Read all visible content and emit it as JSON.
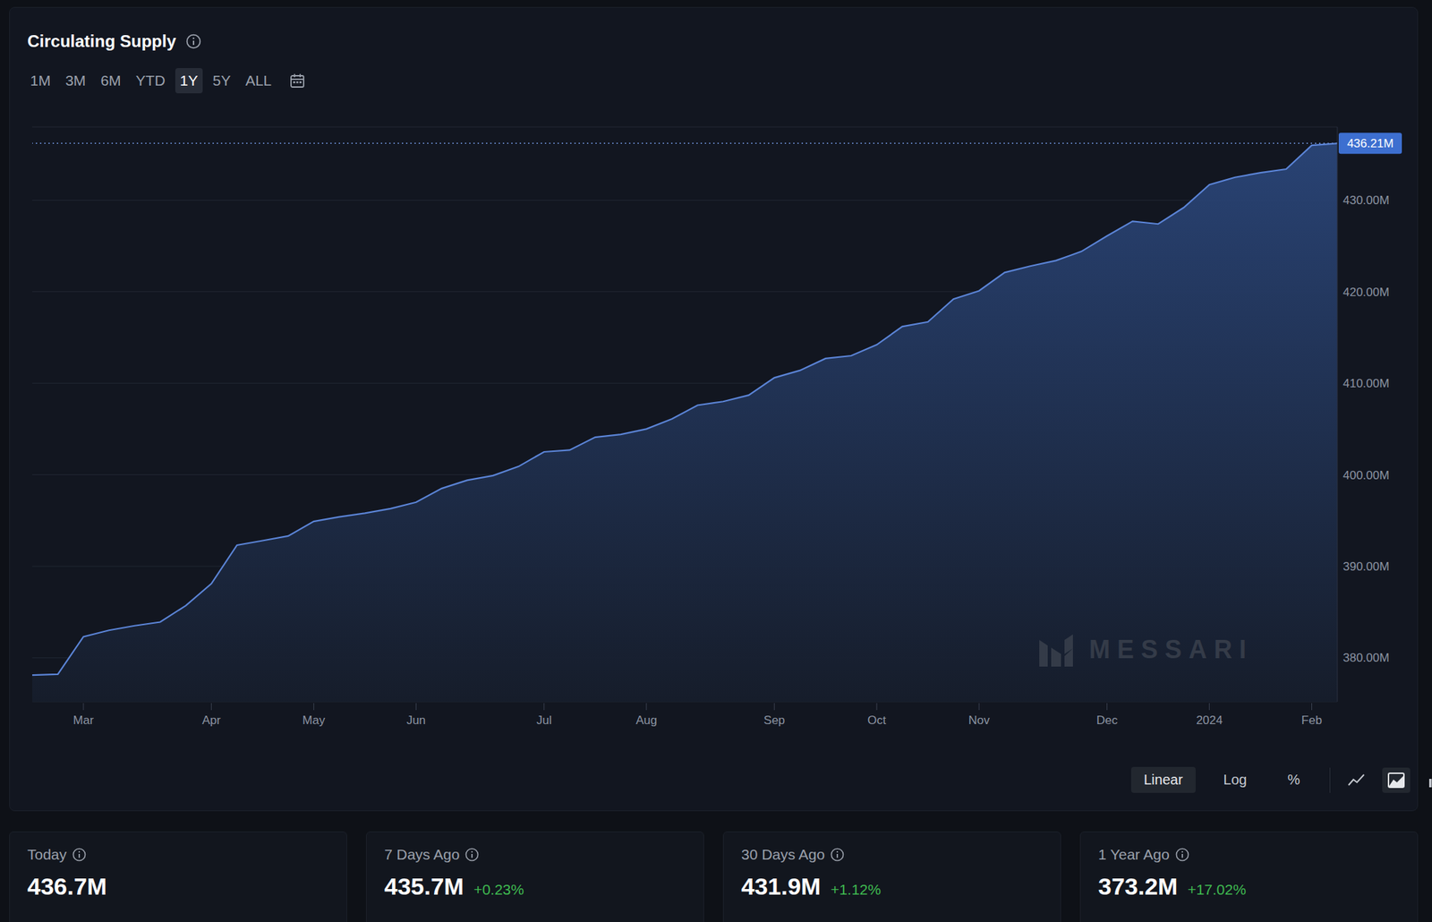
{
  "chart_data": {
    "type": "area",
    "title": "Circulating Supply",
    "categories": [
      null,
      null,
      "Mar",
      null,
      null,
      null,
      null,
      "Apr",
      null,
      null,
      null,
      "May",
      null,
      null,
      null,
      "Jun",
      null,
      null,
      null,
      null,
      "Jul",
      null,
      null,
      null,
      "Aug",
      null,
      null,
      null,
      null,
      "Sep",
      null,
      null,
      null,
      "Oct",
      null,
      null,
      null,
      "Nov",
      null,
      null,
      null,
      null,
      "Dec",
      null,
      null,
      null,
      "2024",
      null,
      null,
      null,
      "Feb",
      null
    ],
    "values": [
      378.1,
      378.2,
      382.3,
      383.0,
      383.5,
      383.9,
      385.7,
      388.1,
      392.3,
      392.8,
      393.3,
      394.9,
      395.4,
      395.8,
      396.3,
      397.0,
      398.5,
      399.4,
      399.9,
      400.9,
      402.5,
      402.7,
      404.1,
      404.4,
      405.0,
      406.1,
      407.6,
      408.0,
      408.7,
      410.6,
      411.4,
      412.7,
      413.0,
      414.2,
      416.2,
      416.7,
      419.2,
      420.1,
      422.1,
      422.8,
      423.4,
      424.4,
      426.1,
      427.7,
      427.4,
      429.2,
      431.7,
      432.5,
      433.0,
      433.4,
      436.0,
      436.21
    ],
    "color": "#5b84d6",
    "ylim": [
      375.2,
      438
    ],
    "yticks": [
      {
        "value": 380,
        "label": "380.00M"
      },
      {
        "value": 390,
        "label": "390.00M"
      },
      {
        "value": 400,
        "label": "400.00M"
      },
      {
        "value": 410,
        "label": "410.00M"
      },
      {
        "value": 420,
        "label": "420.00M"
      },
      {
        "value": 430,
        "label": "430.00M"
      }
    ],
    "grid": true,
    "annotations": [
      {
        "y": 436.21,
        "label": "436.21M"
      }
    ]
  },
  "header": {
    "ranges": [
      "1M",
      "3M",
      "6M",
      "YTD",
      "1Y",
      "5Y",
      "ALL"
    ],
    "selected_range": "1Y"
  },
  "scale_options": [
    "Linear",
    "Log",
    "%"
  ],
  "selected_scale": "Linear",
  "watermark": "MESSARI",
  "stats": [
    {
      "label": "Today",
      "value": "436.7M"
    },
    {
      "label": "7 Days Ago",
      "value": "435.7M",
      "change": "+0.23%"
    },
    {
      "label": "30 Days Ago",
      "value": "431.9M",
      "change": "+1.12%"
    },
    {
      "label": "1 Year Ago",
      "value": "373.2M",
      "change": "+17.02%"
    }
  ]
}
